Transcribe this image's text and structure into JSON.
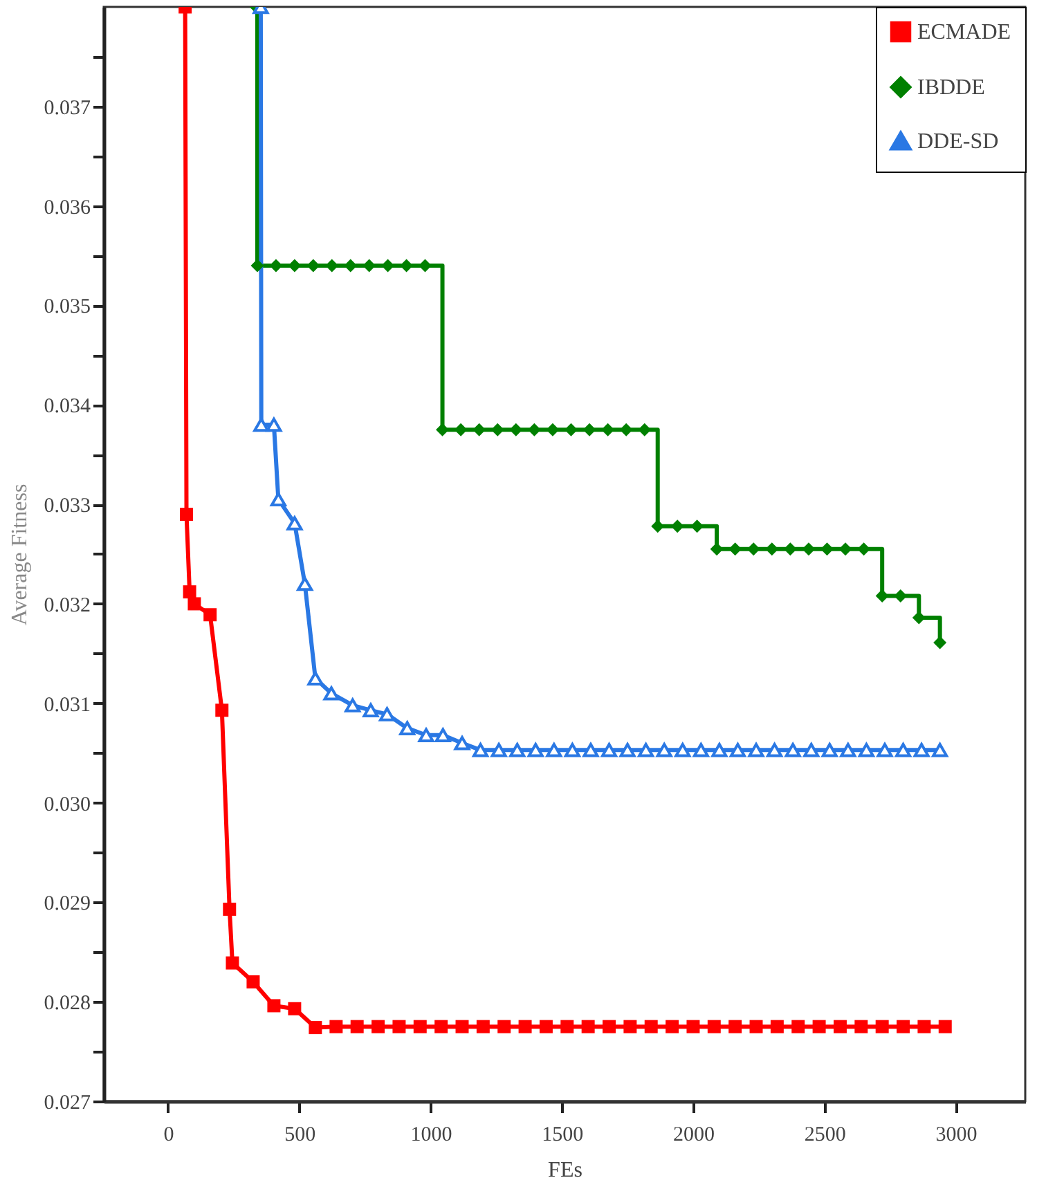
{
  "chart_data": {
    "type": "line",
    "xlabel": "FEs",
    "ylabel": "Average Fitness",
    "xlim": [
      -245,
      3265
    ],
    "ylim": [
      0.027,
      0.038
    ],
    "xticks": [
      0,
      500,
      1000,
      1500,
      2000,
      2500,
      3000
    ],
    "yticks": [
      0.027,
      {
        "value": 0.0275,
        "label": null
      },
      0.028,
      {
        "value": 0.0285,
        "label": null
      },
      0.029,
      {
        "value": 0.0295,
        "label": null
      },
      {
        "value": 0.03,
        "label": "0.030"
      },
      {
        "value": 0.0305,
        "label": null
      },
      0.031,
      {
        "value": 0.0315,
        "label": null
      },
      0.032,
      {
        "value": 0.0325,
        "label": null
      },
      0.033,
      {
        "value": 0.0335,
        "label": null
      },
      0.034,
      {
        "value": 0.0345,
        "label": null
      },
      0.035,
      {
        "value": 0.0355,
        "label": null
      },
      0.036,
      {
        "value": 0.0365,
        "label": null
      },
      0.037,
      {
        "value": 0.0375,
        "label": null
      }
    ],
    "grid": false,
    "legend": "top right",
    "line_style": "solid",
    "series": [
      {
        "name": "ECMADE",
        "color": "#ff0000",
        "marker": "square",
        "x": [
          65,
          70,
          82,
          100,
          160,
          205,
          234,
          245,
          324,
          403,
          482,
          561,
          640,
          720,
          800,
          880,
          960,
          1040,
          1120,
          1200,
          1280,
          1360,
          1440,
          1520,
          1600,
          1680,
          1760,
          1840,
          1920,
          2000,
          2080,
          2160,
          2240,
          2320,
          2400,
          2480,
          2560,
          2640,
          2720,
          2800,
          2880,
          2960
        ],
        "values": [
          0.038,
          0.0329,
          0.03212,
          0.032,
          0.03189,
          0.03093,
          0.02893,
          0.02839,
          0.0282,
          0.02796,
          0.02793,
          0.02774,
          0.02775,
          0.02775,
          0.02775,
          0.02775,
          0.02775,
          0.02775,
          0.02775,
          0.02775,
          0.02775,
          0.02775,
          0.02775,
          0.02775,
          0.02775,
          0.02775,
          0.02775,
          0.02775,
          0.02775,
          0.02775,
          0.02775,
          0.02775,
          0.02775,
          0.02775,
          0.02775,
          0.02775,
          0.02775,
          0.02775,
          0.02775,
          0.02775,
          0.02775,
          0.02775
        ]
      },
      {
        "name": "IBDDE",
        "color": "#008000",
        "type": "step",
        "marker": "diamond",
        "x": [
          335,
          340,
          411,
          482,
          553,
          624,
          695,
          766,
          837,
          908,
          979,
          1045,
          1115,
          1185,
          1255,
          1325,
          1395,
          1465,
          1535,
          1605,
          1675,
          1745,
          1815,
          1865,
          1940,
          2015,
          2090,
          2160,
          2230,
          2300,
          2370,
          2440,
          2510,
          2580,
          2650,
          2720,
          2790,
          2860,
          2940
        ],
        "values": [
          0.038,
          0.0354,
          0.0354,
          0.0354,
          0.0354,
          0.0354,
          0.0354,
          0.0354,
          0.0354,
          0.0354,
          0.0354,
          0.03375,
          0.03375,
          0.03375,
          0.03375,
          0.03375,
          0.03375,
          0.03375,
          0.03375,
          0.03375,
          0.03375,
          0.03375,
          0.03375,
          0.03278,
          0.03278,
          0.03278,
          0.03255,
          0.03255,
          0.03255,
          0.03255,
          0.03255,
          0.03255,
          0.03255,
          0.03255,
          0.03255,
          0.03208,
          0.03208,
          0.03186,
          0.03161
        ]
      },
      {
        "name": "DDE-SD",
        "color": "#2a78e4",
        "marker": "triangle",
        "x": [
          353,
          355,
          403,
          420,
          482,
          521,
          561,
          622,
          703,
          772,
          834,
          911,
          983,
          1047,
          1120,
          1190,
          1260,
          1330,
          1400,
          1470,
          1540,
          1610,
          1680,
          1750,
          1820,
          1890,
          1960,
          2030,
          2100,
          2170,
          2240,
          2310,
          2380,
          2450,
          2520,
          2590,
          2660,
          2730,
          2800,
          2870,
          2940
        ],
        "values": [
          0.038,
          0.0338,
          0.0338,
          0.03305,
          0.03281,
          0.0322,
          0.03125,
          0.0311,
          0.03098,
          0.03093,
          0.03089,
          0.03075,
          0.03068,
          0.03068,
          0.0306,
          0.03053,
          0.03053,
          0.03053,
          0.03053,
          0.03053,
          0.03053,
          0.03053,
          0.03053,
          0.03053,
          0.03053,
          0.03053,
          0.03053,
          0.03053,
          0.03053,
          0.03053,
          0.03053,
          0.03053,
          0.03053,
          0.03053,
          0.03053,
          0.03053,
          0.03053,
          0.03053,
          0.03053,
          0.03053,
          0.03053
        ]
      }
    ]
  }
}
